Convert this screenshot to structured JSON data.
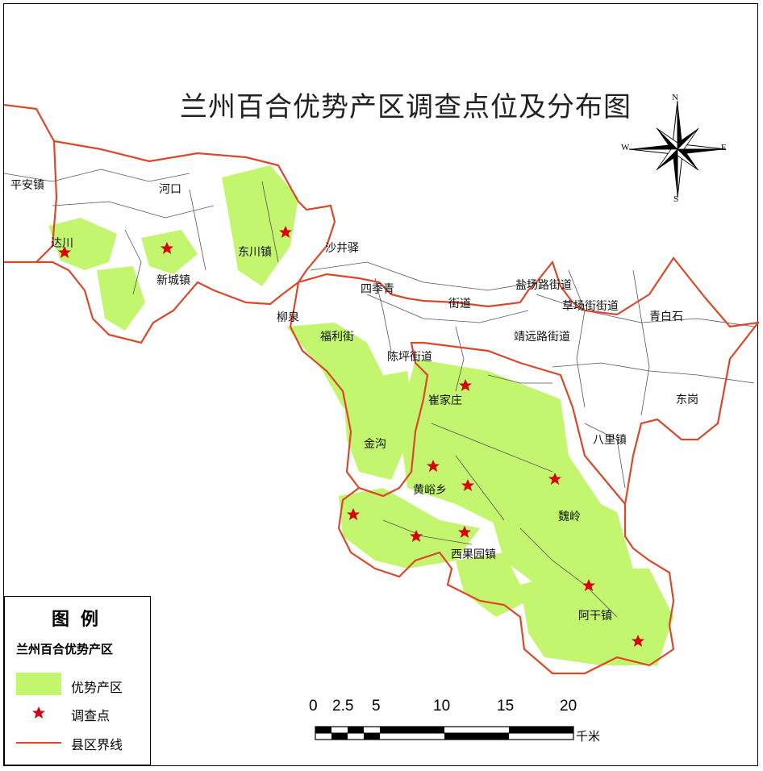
{
  "title": "兰州百合优势产区调查点位及分布图",
  "compass": {
    "north": "N",
    "south": "S",
    "east": "E",
    "west": "W"
  },
  "places": [
    "平安镇",
    "河口",
    "达川",
    "新城镇",
    "东川镇",
    "沙井驿",
    "四季青",
    "街道",
    "盐场路街道",
    "草场街街道",
    "青白石",
    "柳泉",
    "福利街",
    "陈坪街道",
    "靖远路街道",
    "崔家庄",
    "东岗",
    "金沟",
    "八里镇",
    "黄峪乡",
    "魏岭",
    "西果园镇",
    "阿干镇"
  ],
  "legend": {
    "title": "图例",
    "subtitle": "兰州百合优势产区",
    "items": [
      {
        "label": "优势产区",
        "symbol": "green-fill",
        "color": "#c4f56f"
      },
      {
        "label": "调查点",
        "symbol": "red-star",
        "color": "#d9000b"
      },
      {
        "label": "县区界线",
        "symbol": "red-line",
        "color": "#d9482b"
      }
    ]
  },
  "scale_bar": {
    "ticks": [
      "0",
      "2.5",
      "5",
      "10",
      "15",
      "20"
    ],
    "unit": "千米"
  },
  "colors": {
    "zone_fill": "#c4f56f",
    "boundary": "#d9482b",
    "star": "#d9000b",
    "inner_lines": "#555555"
  }
}
